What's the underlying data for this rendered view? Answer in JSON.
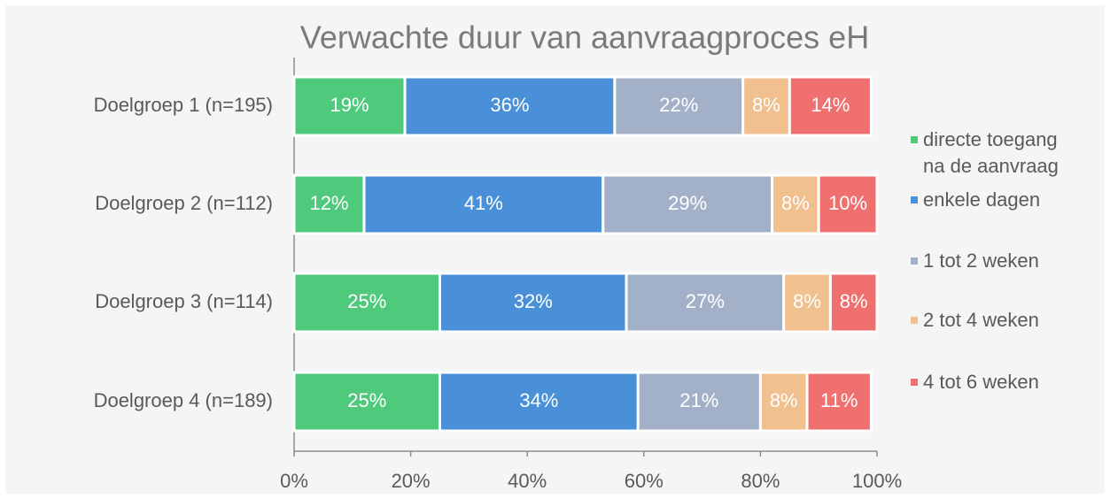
{
  "chart_data": {
    "type": "stacked-barh",
    "title": "Verwachte duur van aanvraagproces eH",
    "categories": [
      "Doelgroep 1 (n=195)",
      "Doelgroep 2 (n=112)",
      "Doelgroep 3 (n=114)",
      "Doelgroep 4 (n=189)"
    ],
    "series": [
      {
        "name": "directe toegang na de aanvraag",
        "color": "#4fc97b",
        "values": [
          19,
          12,
          25,
          25
        ],
        "value_labels": [
          "19%",
          "12%",
          "25%",
          "25%"
        ]
      },
      {
        "name": "enkele dagen",
        "color": "#4a90d9",
        "values": [
          36,
          41,
          32,
          34
        ],
        "value_labels": [
          "36%",
          "41%",
          "32%",
          "34%"
        ]
      },
      {
        "name": "1 tot 2 weken",
        "color": "#a3b1c8",
        "values": [
          22,
          29,
          27,
          21
        ],
        "value_labels": [
          "22%",
          "29%",
          "27%",
          "21%"
        ]
      },
      {
        "name": "2 tot 4 weken",
        "color": "#f0c08e",
        "values": [
          8,
          8,
          8,
          8
        ],
        "value_labels": [
          "8%",
          "8%",
          "8%",
          "8%"
        ]
      },
      {
        "name": "4 tot 6 weken",
        "color": "#f07070",
        "values": [
          14,
          10,
          8,
          11
        ],
        "value_labels": [
          "14%",
          "10%",
          "8%",
          "11%"
        ]
      }
    ],
    "xlim": [
      0,
      100
    ],
    "xticks": [
      {
        "value": 0,
        "label": "0%"
      },
      {
        "value": 20,
        "label": "20%"
      },
      {
        "value": 40,
        "label": "40%"
      },
      {
        "value": 60,
        "label": "60%"
      },
      {
        "value": 80,
        "label": "80%"
      },
      {
        "value": 100,
        "label": "100%"
      }
    ],
    "legend": "right"
  }
}
